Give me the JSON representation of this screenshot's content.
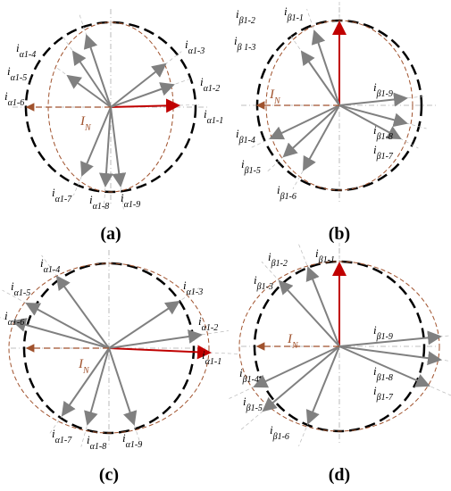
{
  "panels": [
    {
      "caption": "(a)",
      "reference": {
        "main": "I",
        "sub": "N"
      },
      "vectors": [
        {
          "main": "i",
          "sub": "α1-1"
        },
        {
          "main": "i",
          "sub": "α1-2"
        },
        {
          "main": "i",
          "sub": "α1-3"
        },
        {
          "main": "i",
          "sub": "α1-4"
        },
        {
          "main": "i",
          "sub": "α1-5"
        },
        {
          "main": "i",
          "sub": "α1-6"
        },
        {
          "main": "i",
          "sub": "α1-7"
        },
        {
          "main": "i",
          "sub": "α1-8"
        },
        {
          "main": "i",
          "sub": "α1-9"
        }
      ]
    },
    {
      "caption": "(b)",
      "reference": {
        "main": "I",
        "sub": "N"
      },
      "vectors": [
        {
          "main": "i",
          "sub": "β1-1"
        },
        {
          "main": "i",
          "sub": "β1-2"
        },
        {
          "main": "i",
          "sub": "β 1-3"
        },
        {
          "main": "i",
          "sub": "β1-4"
        },
        {
          "main": "i",
          "sub": "β1-5"
        },
        {
          "main": "i",
          "sub": "β1-6"
        },
        {
          "main": "i",
          "sub": "β1-7"
        },
        {
          "main": "i",
          "sub": "β1-8"
        },
        {
          "main": "i",
          "sub": "β1-9"
        }
      ]
    },
    {
      "caption": "(c)",
      "reference": {
        "main": "I",
        "sub": "N"
      },
      "vectors": [
        {
          "main": "i",
          "sub": "α1-1"
        },
        {
          "main": "i",
          "sub": "α1-2"
        },
        {
          "main": "i",
          "sub": "α1-3"
        },
        {
          "main": "i",
          "sub": "α1-4"
        },
        {
          "main": "i",
          "sub": "α1-5"
        },
        {
          "main": "i",
          "sub": "α1-6"
        },
        {
          "main": "i",
          "sub": "α1-7"
        },
        {
          "main": "i",
          "sub": "α1-8"
        },
        {
          "main": "i",
          "sub": "α1-9"
        }
      ]
    },
    {
      "caption": "(d)",
      "reference": {
        "main": "I",
        "sub": "N"
      },
      "vectors": [
        {
          "main": "i",
          "sub": "β1-1"
        },
        {
          "main": "i",
          "sub": "β1-2"
        },
        {
          "main": "i",
          "sub": "β1-3"
        },
        {
          "main": "i",
          "sub": "β1-4"
        },
        {
          "main": "i",
          "sub": "β1-5"
        },
        {
          "main": "i",
          "sub": "β1-6"
        },
        {
          "main": "i",
          "sub": "β1-7"
        },
        {
          "main": "i",
          "sub": "β1-8"
        },
        {
          "main": "i",
          "sub": "β1-9"
        }
      ]
    }
  ]
}
